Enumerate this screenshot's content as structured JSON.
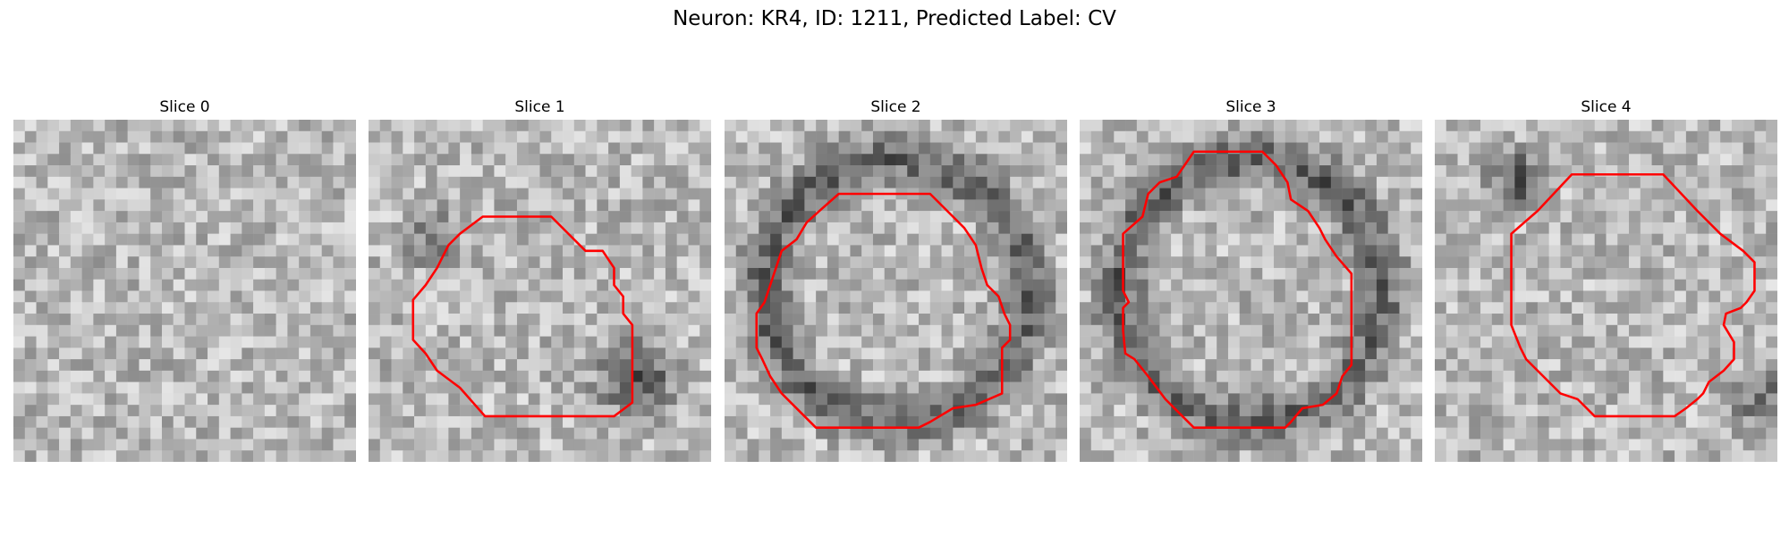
{
  "figure": {
    "title": "Neuron: KR4, ID: 1211, Predicted Label: CV"
  },
  "panels": [
    {
      "title": "Slice 0",
      "has_contour": false,
      "contour_color": "#ff0000",
      "pattern": "uniform-noise"
    },
    {
      "title": "Slice 1",
      "has_contour": true,
      "contour_color": "#ff0000",
      "pattern": "dark-lower-right"
    },
    {
      "title": "Slice 2",
      "has_contour": true,
      "contour_color": "#ff0000",
      "pattern": "dark-ring"
    },
    {
      "title": "Slice 3",
      "has_contour": true,
      "contour_color": "#ff0000",
      "pattern": "dark-ring"
    },
    {
      "title": "Slice 4",
      "has_contour": true,
      "contour_color": "#ff0000",
      "pattern": "dark-top-left"
    }
  ],
  "colors": {
    "contour": "#ff0000",
    "colormap": "grayscale"
  }
}
